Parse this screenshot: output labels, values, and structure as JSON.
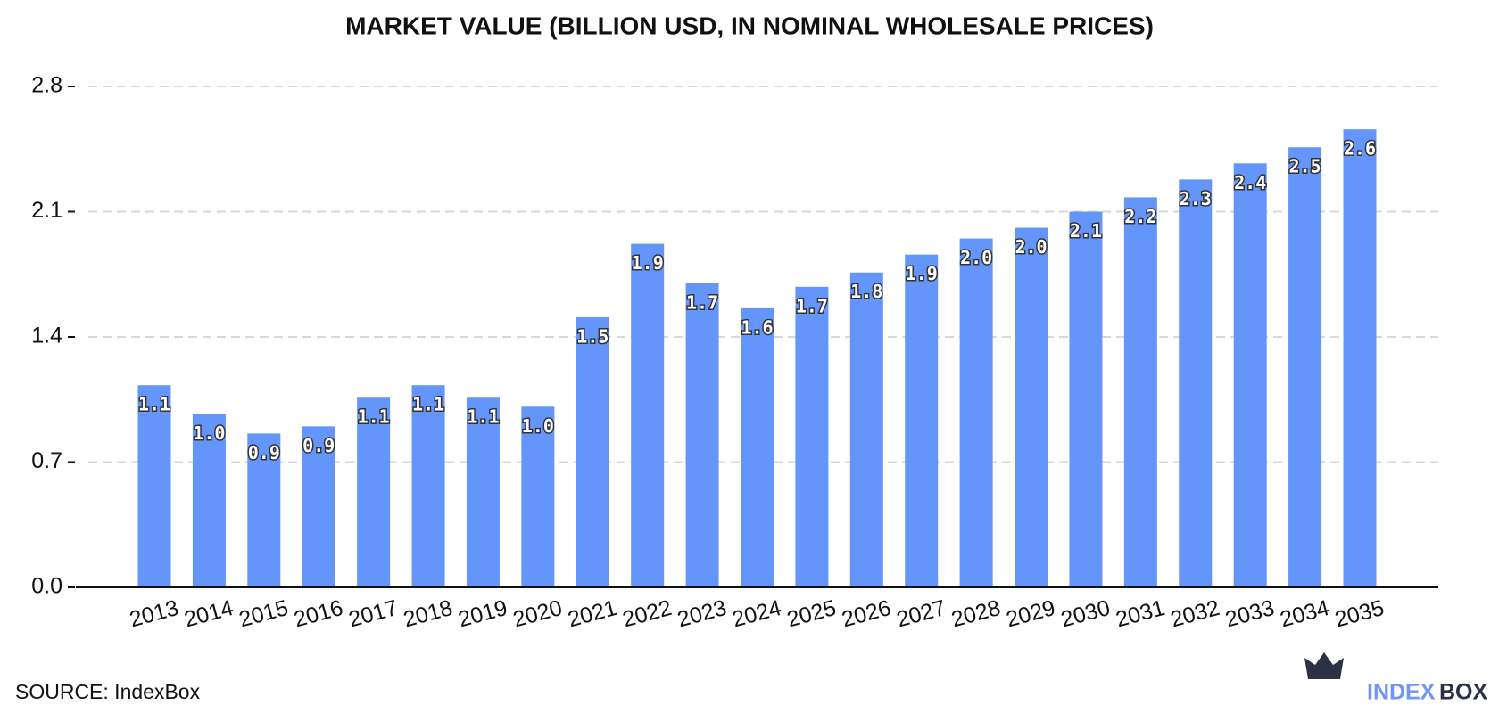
{
  "chart_data": {
    "type": "bar",
    "title": "MARKET VALUE (BILLION USD, IN NOMINAL WHOLESALE PRICES)",
    "categories": [
      "2013",
      "2014",
      "2015",
      "2016",
      "2017",
      "2018",
      "2019",
      "2020",
      "2021",
      "2022",
      "2023",
      "2024",
      "2025",
      "2026",
      "2027",
      "2028",
      "2029",
      "2030",
      "2031",
      "2032",
      "2033",
      "2034",
      "2035"
    ],
    "values": [
      1.13,
      0.97,
      0.86,
      0.9,
      1.06,
      1.13,
      1.06,
      1.01,
      1.51,
      1.92,
      1.7,
      1.56,
      1.68,
      1.76,
      1.86,
      1.95,
      2.01,
      2.1,
      2.18,
      2.28,
      2.37,
      2.46,
      2.56
    ],
    "value_labels": [
      "1.1",
      "1.0",
      "0.9",
      "0.9",
      "1.1",
      "1.1",
      "1.1",
      "1.0",
      "1.5",
      "1.9",
      "1.7",
      "1.6",
      "1.7",
      "1.8",
      "1.9",
      "2.0",
      "2.0",
      "2.1",
      "2.2",
      "2.3",
      "2.4",
      "2.5",
      "2.6"
    ],
    "color": "#6495fb",
    "ylim": [
      0,
      2.8
    ],
    "yticks": [
      {
        "value": 0,
        "label": "0.0"
      },
      0.7,
      1.4,
      2.1,
      2.8
    ],
    "grid": true,
    "source": "SOURCE: IndexBox",
    "logo": [
      "INDEX",
      "BOX"
    ]
  }
}
